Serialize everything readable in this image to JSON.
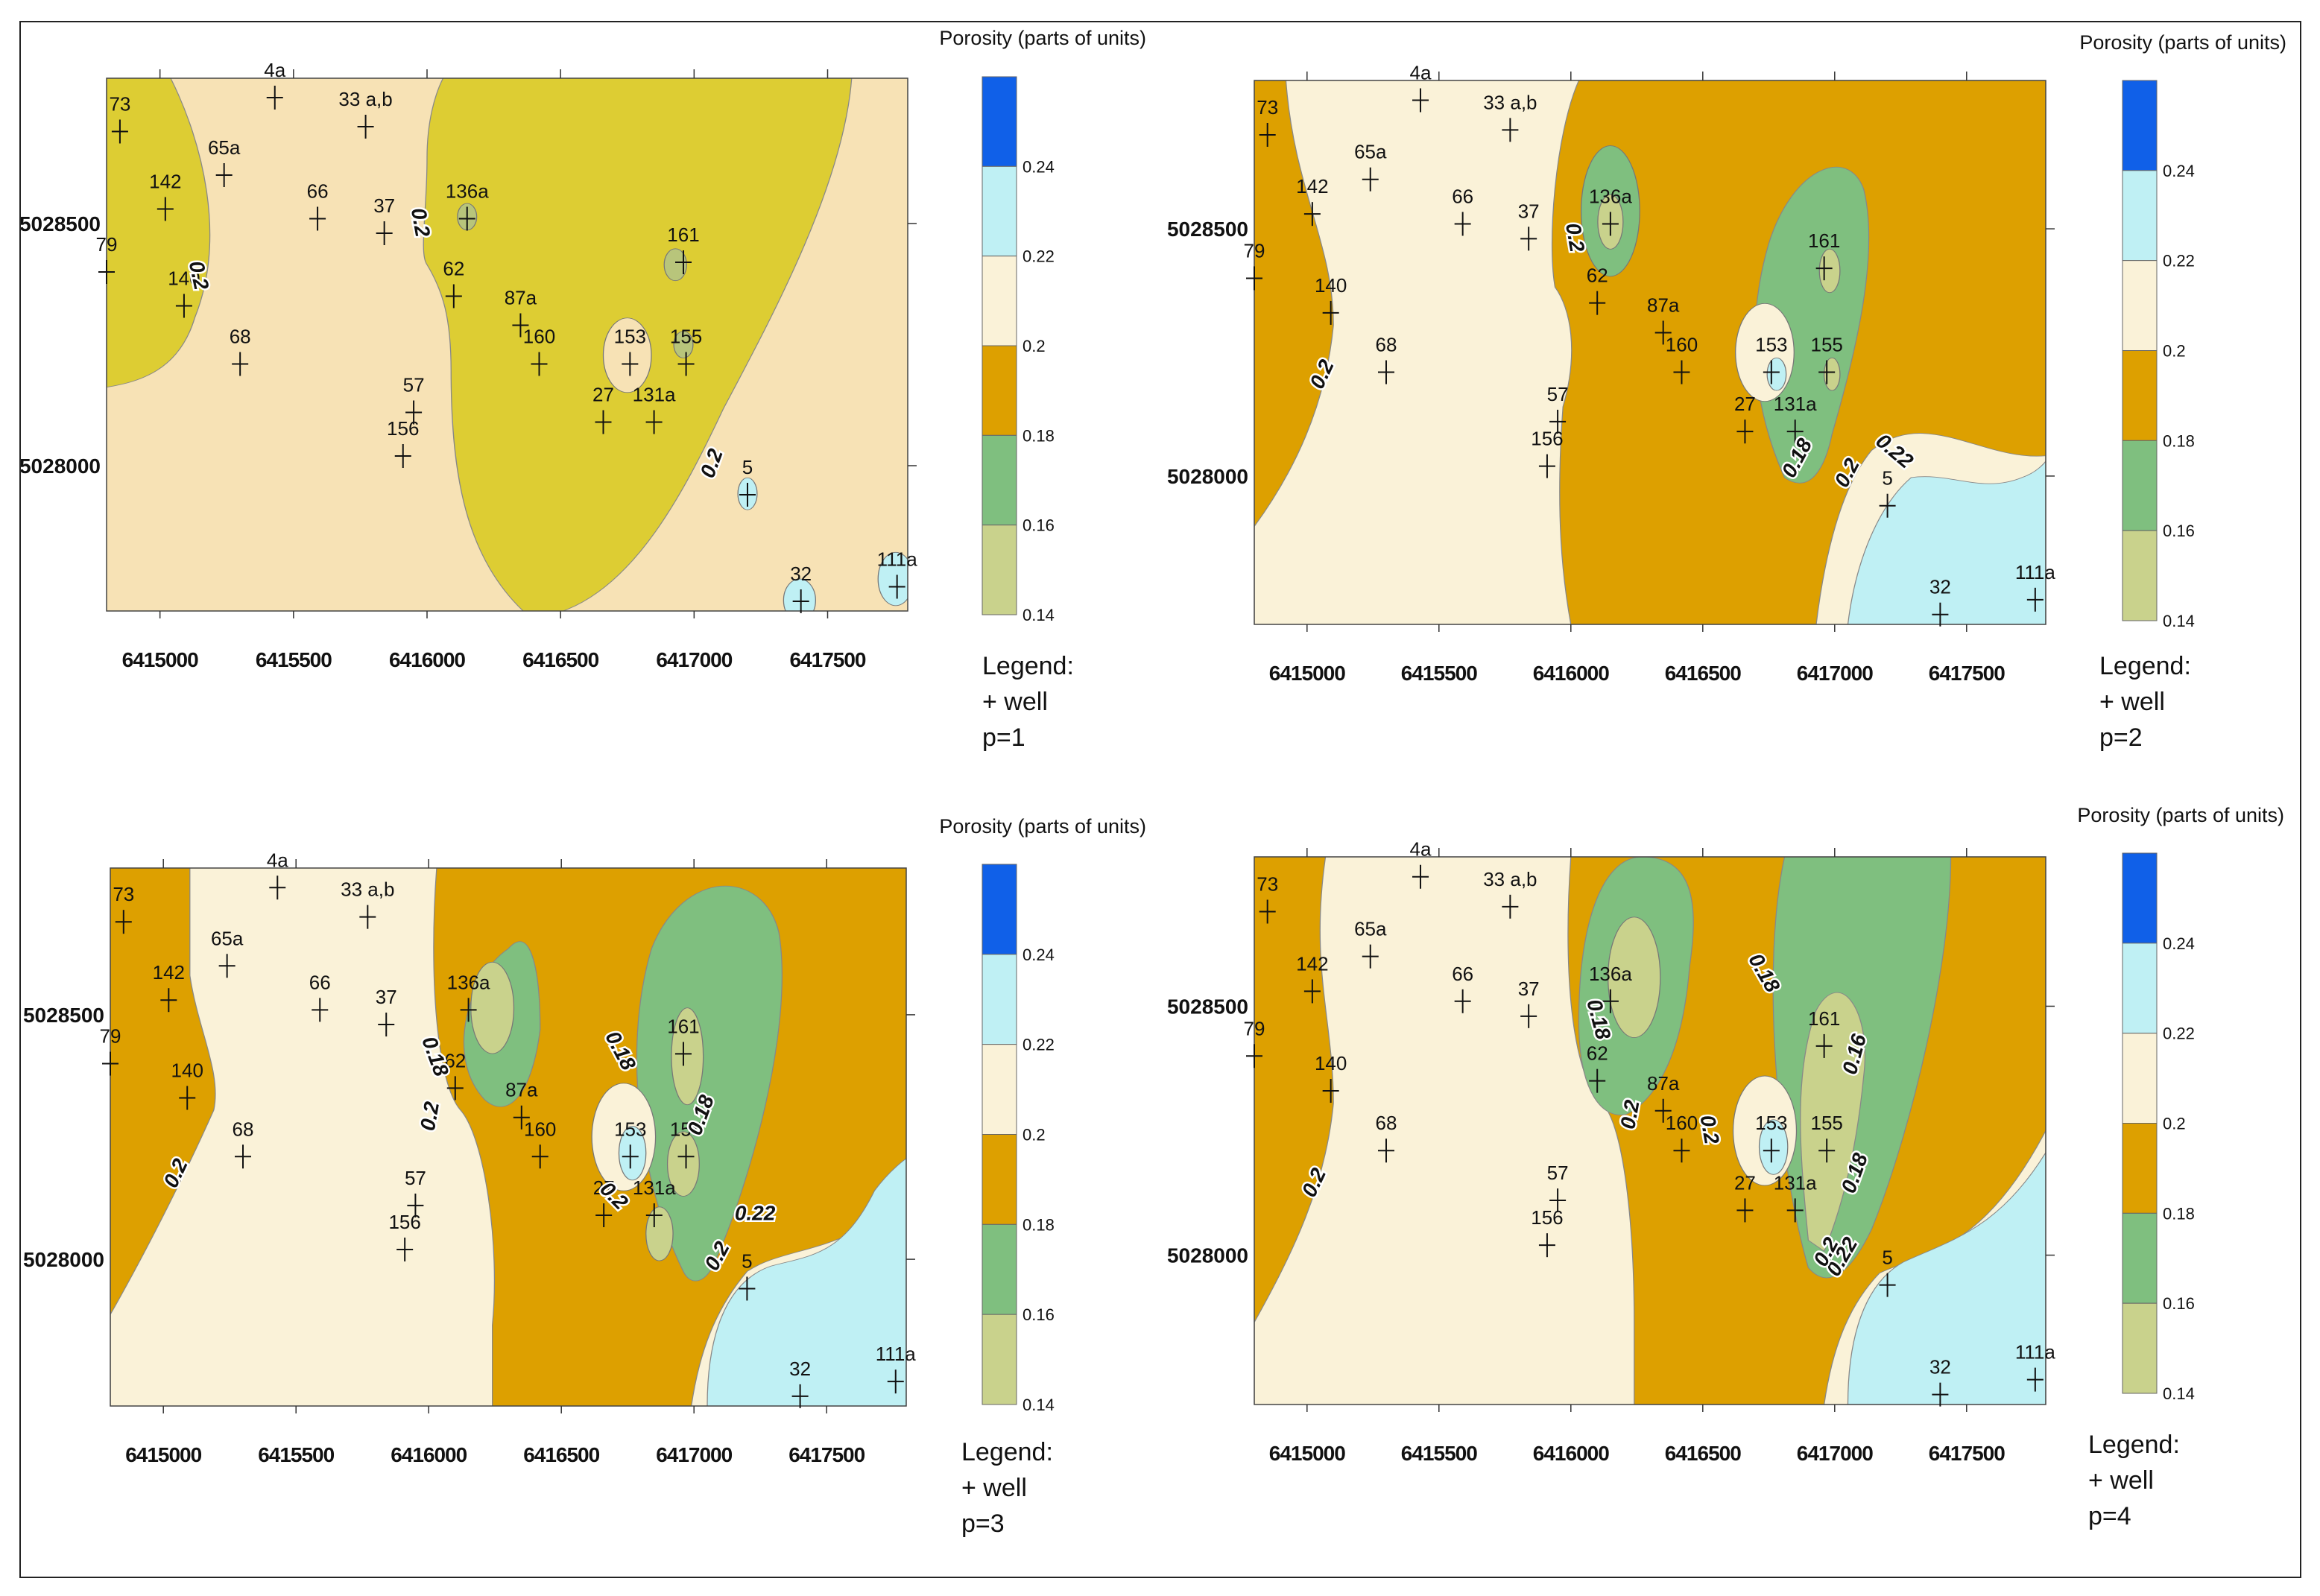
{
  "colors": {
    "c014": "#c9d28c",
    "c016": "#7fbf7f",
    "c018": "#dda000",
    "c020": "#faf2d8",
    "c022": "#bff0f4",
    "c024": "#1060e8",
    "p1_low": "#ddcd33",
    "p1_mid": "#f7e2b5",
    "p1_lowlow": "#b8c57b"
  },
  "axis": {
    "x_ticks": [
      "6415000",
      "6415500",
      "6416000",
      "6416500",
      "6417000",
      "6417500"
    ],
    "y_ticks": [
      "5028500",
      "5028000"
    ]
  },
  "legend": {
    "colorbar_title": "Porosity (parts of units)",
    "colorbar_ticks": [
      "0.24",
      "0.22",
      "0.2",
      "0.18",
      "0.16",
      "0.14"
    ],
    "legend_label": "Legend:",
    "well_label": "+ well"
  },
  "wells": [
    {
      "name": "73",
      "x": 6414850,
      "y": 5028690
    },
    {
      "name": "4a",
      "x": 6415430,
      "y": 5028760
    },
    {
      "name": "33 a,b",
      "x": 6415770,
      "y": 5028700
    },
    {
      "name": "65a",
      "x": 6415240,
      "y": 5028600
    },
    {
      "name": "142",
      "x": 6415020,
      "y": 5028530
    },
    {
      "name": "66",
      "x": 6415590,
      "y": 5028510
    },
    {
      "name": "37",
      "x": 6415840,
      "y": 5028480
    },
    {
      "name": "136a",
      "x": 6416150,
      "y": 5028510
    },
    {
      "name": "79",
      "x": 6414800,
      "y": 5028400
    },
    {
      "name": "140",
      "x": 6415090,
      "y": 5028330
    },
    {
      "name": "62",
      "x": 6416100,
      "y": 5028350
    },
    {
      "name": "161",
      "x": 6416960,
      "y": 5028420
    },
    {
      "name": "87a",
      "x": 6416350,
      "y": 5028290
    },
    {
      "name": "68",
      "x": 6415300,
      "y": 5028210
    },
    {
      "name": "160",
      "x": 6416420,
      "y": 5028210
    },
    {
      "name": "153",
      "x": 6416760,
      "y": 5028210
    },
    {
      "name": "155",
      "x": 6416970,
      "y": 5028210
    },
    {
      "name": "57",
      "x": 6415950,
      "y": 5028110
    },
    {
      "name": "27",
      "x": 6416660,
      "y": 5028090
    },
    {
      "name": "131a",
      "x": 6416850,
      "y": 5028090
    },
    {
      "name": "156",
      "x": 6415910,
      "y": 5028020
    },
    {
      "name": "5",
      "x": 6417200,
      "y": 5027940
    },
    {
      "name": "32",
      "x": 6417400,
      "y": 5027720
    },
    {
      "name": "111a",
      "x": 6417760,
      "y": 5027750
    }
  ],
  "panels": [
    {
      "p_label": "p=1",
      "contour_labels": [
        {
          "text": "0.2",
          "x": 6415120,
          "y": 5028390,
          "rot": 78
        },
        {
          "text": "0.2",
          "x": 6415950,
          "y": 5028500,
          "rot": 80
        },
        {
          "text": "0.2",
          "x": 6417090,
          "y": 5028000,
          "rot": -70
        }
      ]
    },
    {
      "p_label": "p=2",
      "contour_labels": [
        {
          "text": "0.2",
          "x": 6415080,
          "y": 5028200,
          "rot": -65
        },
        {
          "text": "0.2",
          "x": 6415990,
          "y": 5028480,
          "rot": 80
        },
        {
          "text": "0.18",
          "x": 6416880,
          "y": 5028030,
          "rot": -62
        },
        {
          "text": "0.2",
          "x": 6417070,
          "y": 5028000,
          "rot": -62
        },
        {
          "text": "0.22",
          "x": 6417210,
          "y": 5028040,
          "rot": 40
        }
      ]
    },
    {
      "p_label": "p=3",
      "contour_labels": [
        {
          "text": "0.2",
          "x": 6415070,
          "y": 5028170,
          "rot": -65
        },
        {
          "text": "0.18",
          "x": 6416000,
          "y": 5028410,
          "rot": 70
        },
        {
          "text": "0.2",
          "x": 6416030,
          "y": 5028290,
          "rot": -80
        },
        {
          "text": "0.18",
          "x": 6416700,
          "y": 5028420,
          "rot": 62
        },
        {
          "text": "0.18",
          "x": 6417050,
          "y": 5028290,
          "rot": -70
        },
        {
          "text": "0.2",
          "x": 6417110,
          "y": 5028000,
          "rot": -62
        },
        {
          "text": "0.22",
          "x": 6417230,
          "y": 5028080,
          "rot": 0
        },
        {
          "text": "0.2",
          "x": 6416680,
          "y": 5028120,
          "rot": 45
        }
      ]
    },
    {
      "p_label": "p=4",
      "contour_labels": [
        {
          "text": "0.2",
          "x": 6415050,
          "y": 5028140,
          "rot": -65
        },
        {
          "text": "0.18",
          "x": 6416080,
          "y": 5028470,
          "rot": 75
        },
        {
          "text": "0.2",
          "x": 6416250,
          "y": 5028280,
          "rot": -80
        },
        {
          "text": "0.2",
          "x": 6416500,
          "y": 5028250,
          "rot": 80
        },
        {
          "text": "0.18",
          "x": 6416710,
          "y": 5028560,
          "rot": 60
        },
        {
          "text": "0.16",
          "x": 6417100,
          "y": 5028400,
          "rot": -75
        },
        {
          "text": "0.18",
          "x": 6417100,
          "y": 5028160,
          "rot": -70
        },
        {
          "text": "0.22",
          "x": 6417050,
          "y": 5027990,
          "rot": -60
        },
        {
          "text": "0.2",
          "x": 6416990,
          "y": 5028000,
          "rot": -62
        }
      ]
    }
  ]
}
